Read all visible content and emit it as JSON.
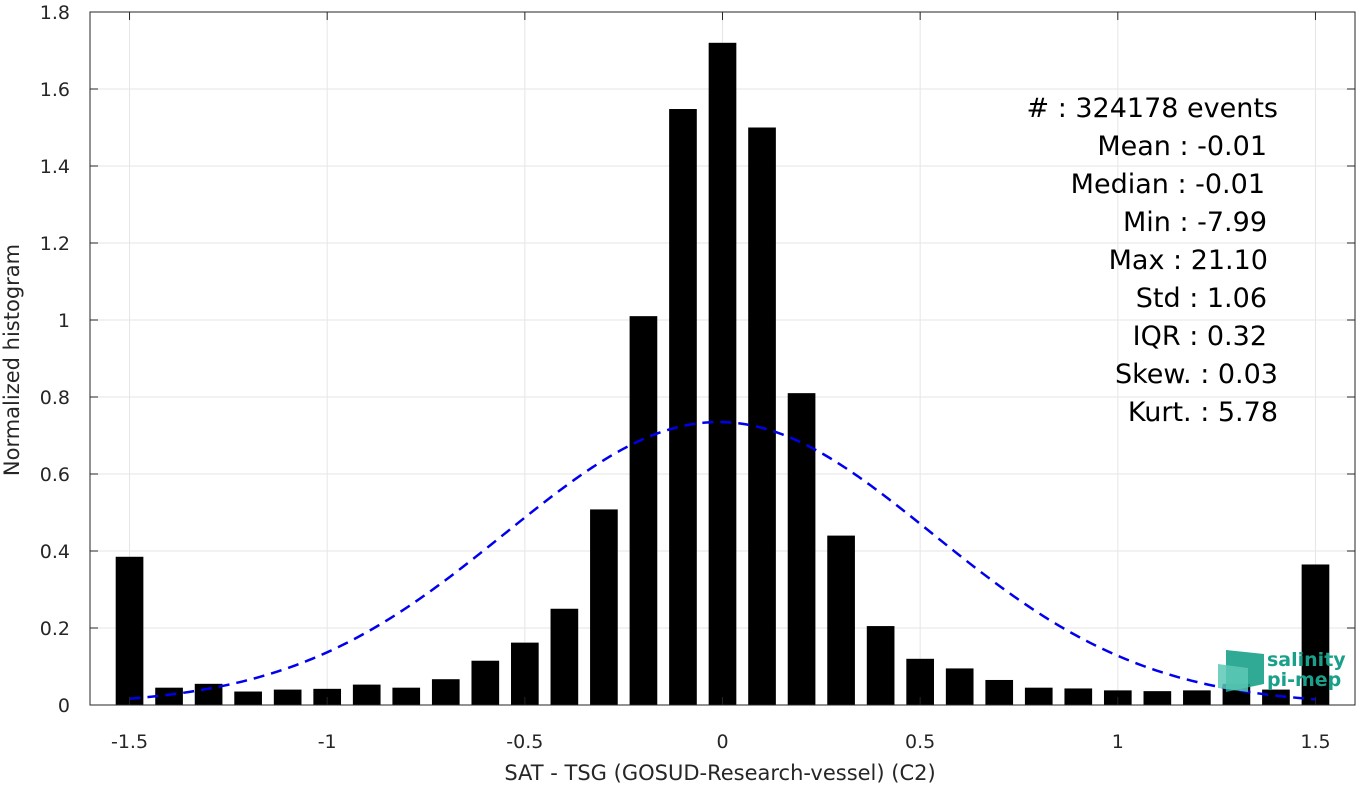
{
  "chart_data": {
    "type": "bar",
    "title": "",
    "xlabel": "SAT - TSG (GOSUD-Research-vessel) (C2)",
    "ylabel": "Normalized histogram",
    "xlim": [
      -1.6,
      1.6
    ],
    "ylim": [
      0,
      1.8
    ],
    "grid": true,
    "x_ticks": [
      -1.5,
      -1,
      -0.5,
      0,
      0.5,
      1,
      1.5
    ],
    "x_tick_labels": [
      "-1.5",
      "-1",
      "-0.5",
      "0",
      "0.5",
      "1",
      "1.5"
    ],
    "y_ticks": [
      0,
      0.2,
      0.4,
      0.6,
      0.8,
      1,
      1.2,
      1.4,
      1.6,
      1.8
    ],
    "y_tick_labels": [
      "0",
      "0.2",
      "0.4",
      "0.6",
      "0.8",
      "1",
      "1.2",
      "1.4",
      "1.6",
      "1.8"
    ],
    "bar_color": "#000000",
    "bars": {
      "x": [
        -1.5,
        -1.4,
        -1.3,
        -1.2,
        -1.1,
        -1.0,
        -0.9,
        -0.8,
        -0.7,
        -0.6,
        -0.5,
        -0.4,
        -0.3,
        -0.2,
        -0.1,
        0.0,
        0.1,
        0.2,
        0.3,
        0.4,
        0.5,
        0.6,
        0.7,
        0.8,
        0.9,
        1.0,
        1.1,
        1.2,
        1.3,
        1.4,
        1.5
      ],
      "values": [
        0.385,
        0.045,
        0.055,
        0.035,
        0.04,
        0.042,
        0.053,
        0.045,
        0.067,
        0.115,
        0.162,
        0.25,
        0.508,
        1.01,
        1.548,
        1.72,
        1.5,
        0.81,
        0.44,
        0.205,
        0.12,
        0.095,
        0.065,
        0.045,
        0.043,
        0.038,
        0.036,
        0.038,
        0.055,
        0.04,
        0.365
      ]
    },
    "fit_curve": {
      "style": "dashed",
      "color": "#0000ee",
      "mean": -0.01,
      "peak": 0.735,
      "sigma": 0.54,
      "x_range": [
        -1.5,
        1.5
      ]
    },
    "annotations": [
      "#  : 324178 events",
      "Mean : -0.01",
      "Median : -0.01",
      "Min : -7.99",
      "Max : 21.10",
      "Std : 1.06",
      "IQR : 0.32",
      "Skew. : 0.03",
      "Kurt. : 5.78"
    ]
  },
  "logo": {
    "line1": "salinity",
    "line2": "pi-mep",
    "color": "#1aa08a"
  }
}
